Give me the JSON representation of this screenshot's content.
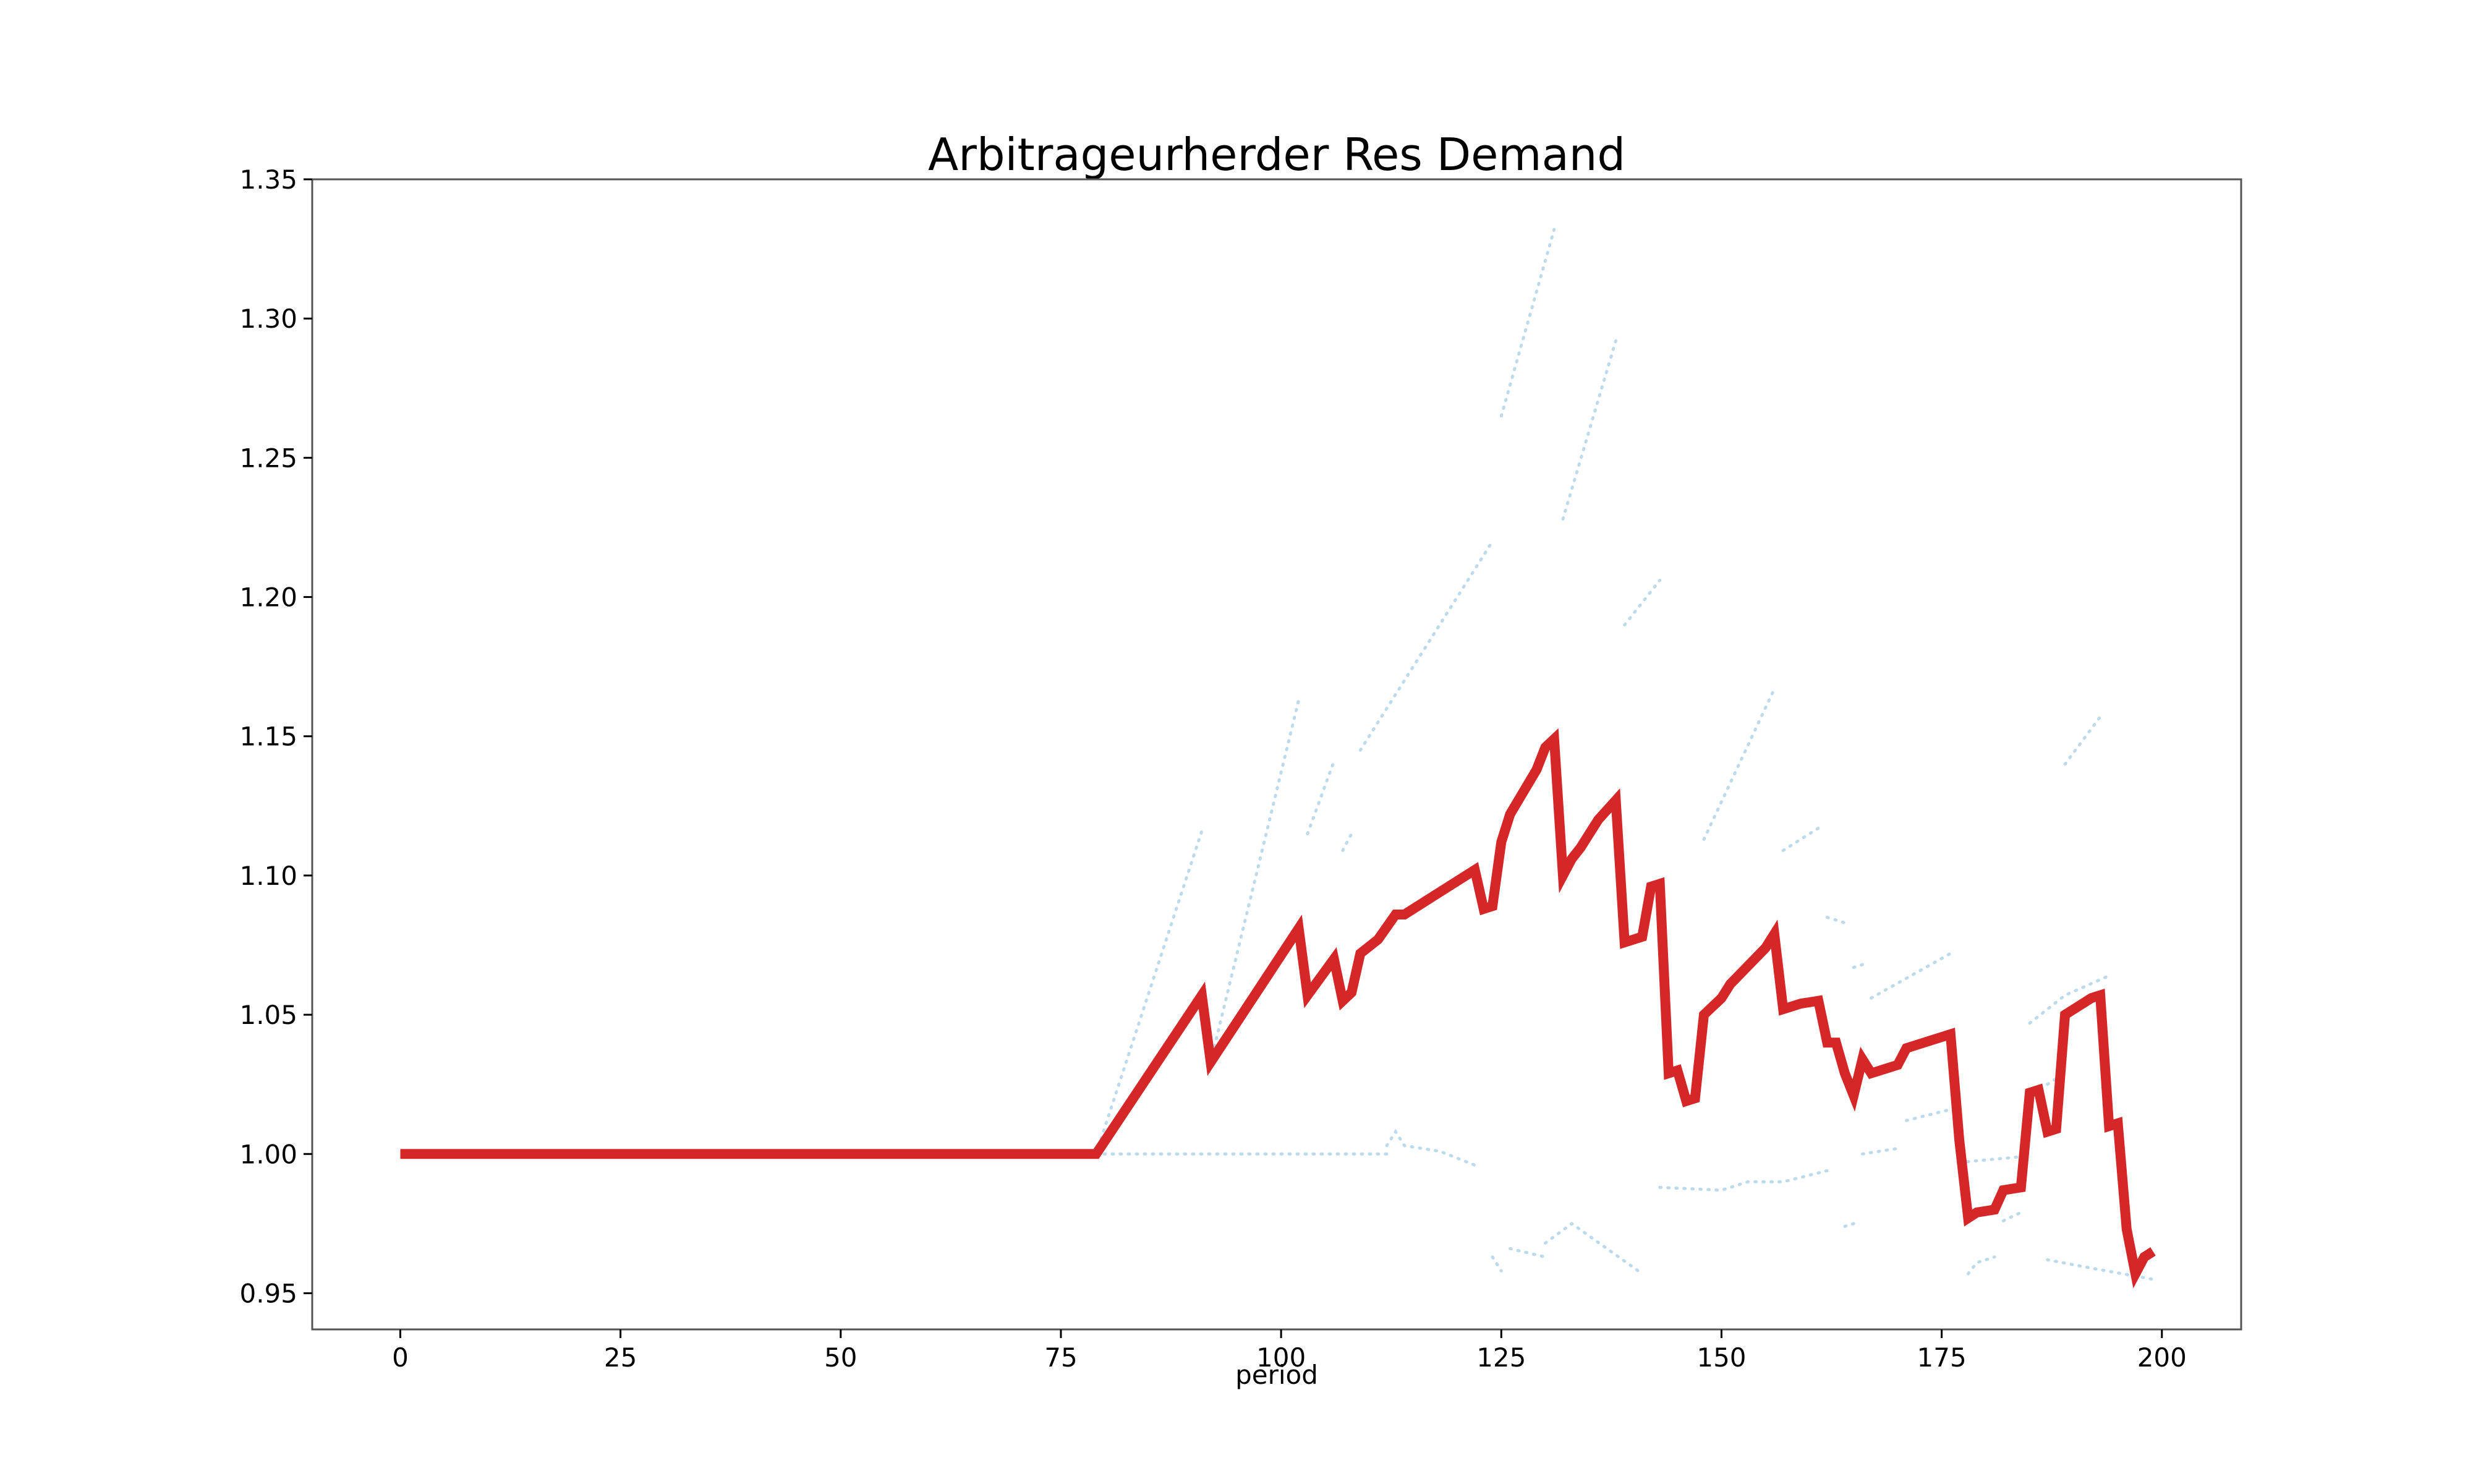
{
  "chart_data": {
    "type": "line",
    "title": "Arbitrageurherder Res Demand",
    "xlabel": "period",
    "ylabel": "",
    "xlim": [
      -10,
      209
    ],
    "ylim": [
      0.937,
      1.35
    ],
    "x_ticks": [
      0,
      25,
      50,
      75,
      100,
      125,
      150,
      175,
      200
    ],
    "x_tick_labels": [
      "0",
      "25",
      "50",
      "75",
      "100",
      "125",
      "150",
      "175",
      "200"
    ],
    "y_ticks": [
      0.95,
      1.0,
      1.05,
      1.1,
      1.15,
      1.2,
      1.25,
      1.3,
      1.35
    ],
    "y_tick_labels": [
      "0.95",
      "1.00",
      "1.05",
      "1.10",
      "1.15",
      "1.20",
      "1.25",
      "1.30",
      "1.35"
    ],
    "grid": false,
    "legend": "none",
    "colors": {
      "main_series": "#d62728",
      "faint_series": "#a6cee3"
    },
    "series": [
      {
        "points": [
          [
            0,
            1.0
          ],
          [
            79,
            1.0
          ],
          [
            91,
            1.057
          ],
          [
            92,
            1.033
          ],
          [
            102,
            1.081
          ],
          [
            103,
            1.057
          ],
          [
            106,
            1.07
          ],
          [
            107,
            1.055
          ],
          [
            108,
            1.058
          ],
          [
            109,
            1.072
          ],
          [
            111,
            1.077
          ],
          [
            113,
            1.086
          ],
          [
            114,
            1.086
          ],
          [
            118,
            1.094
          ],
          [
            122,
            1.102
          ],
          [
            123,
            1.088
          ],
          [
            124,
            1.089
          ],
          [
            125,
            1.112
          ],
          [
            126,
            1.122
          ],
          [
            129,
            1.138
          ],
          [
            130,
            1.146
          ],
          [
            131,
            1.149
          ],
          [
            132,
            1.1
          ],
          [
            133,
            1.106
          ],
          [
            134,
            1.11
          ],
          [
            136,
            1.12
          ],
          [
            138,
            1.127
          ],
          [
            139,
            1.076
          ],
          [
            141,
            1.078
          ],
          [
            142,
            1.096
          ],
          [
            143,
            1.097
          ],
          [
            144,
            1.029
          ],
          [
            145,
            1.03
          ],
          [
            146,
            1.019
          ],
          [
            147,
            1.02
          ],
          [
            148,
            1.05
          ],
          [
            150,
            1.056
          ],
          [
            151,
            1.061
          ],
          [
            155,
            1.074
          ],
          [
            156,
            1.079
          ],
          [
            157,
            1.052
          ],
          [
            159,
            1.054
          ],
          [
            161,
            1.055
          ],
          [
            162,
            1.04
          ],
          [
            163,
            1.04
          ],
          [
            164,
            1.029
          ],
          [
            165,
            1.021
          ],
          [
            166,
            1.034
          ],
          [
            167,
            1.029
          ],
          [
            168,
            1.03
          ],
          [
            170,
            1.032
          ],
          [
            171,
            1.038
          ],
          [
            175,
            1.042
          ],
          [
            176,
            1.043
          ],
          [
            177,
            1.005
          ],
          [
            178,
            0.977
          ],
          [
            179,
            0.979
          ],
          [
            181,
            0.98
          ],
          [
            182,
            0.987
          ],
          [
            184,
            0.988
          ],
          [
            185,
            1.022
          ],
          [
            186,
            1.023
          ],
          [
            187,
            1.008
          ],
          [
            188,
            1.009
          ],
          [
            189,
            1.05
          ],
          [
            192,
            1.056
          ],
          [
            193,
            1.057
          ],
          [
            194,
            1.01
          ],
          [
            195,
            1.011
          ],
          [
            196,
            0.973
          ],
          [
            197,
            0.957
          ],
          [
            198,
            0.963
          ],
          [
            199,
            0.965
          ]
        ]
      }
    ],
    "faint_series": [
      {
        "points": [
          [
            79,
            1.0
          ],
          [
            100,
            1.0
          ],
          [
            112,
            1.0
          ]
        ]
      },
      {
        "points": [
          [
            112,
            1.003
          ],
          [
            113,
            1.008
          ],
          [
            114,
            1.003
          ],
          [
            118,
            1.001
          ],
          [
            122,
            0.996
          ]
        ]
      },
      {
        "points": [
          [
            79,
            1.0
          ],
          [
            91,
            1.116
          ]
        ]
      },
      {
        "points": [
          [
            92,
            1.033
          ],
          [
            102,
            1.163
          ]
        ]
      },
      {
        "points": [
          [
            103,
            1.115
          ],
          [
            106,
            1.141
          ]
        ]
      },
      {
        "points": [
          [
            107,
            1.109
          ],
          [
            108,
            1.115
          ]
        ]
      },
      {
        "points": [
          [
            109,
            1.145
          ],
          [
            124,
            1.22
          ]
        ]
      },
      {
        "points": [
          [
            125,
            1.265
          ],
          [
            131,
            1.332
          ]
        ]
      },
      {
        "points": [
          [
            132,
            1.228
          ],
          [
            138,
            1.292
          ]
        ]
      },
      {
        "points": [
          [
            139,
            1.19
          ],
          [
            143,
            1.206
          ]
        ]
      },
      {
        "points": [
          [
            148,
            1.113
          ],
          [
            156,
            1.167
          ]
        ]
      },
      {
        "points": [
          [
            157,
            1.109
          ],
          [
            161,
            1.117
          ]
        ]
      },
      {
        "points": [
          [
            162,
            1.085
          ],
          [
            164,
            1.083
          ]
        ]
      },
      {
        "points": [
          [
            165,
            1.067
          ],
          [
            166,
            1.068
          ]
        ]
      },
      {
        "points": [
          [
            167,
            1.056
          ],
          [
            176,
            1.072
          ]
        ]
      },
      {
        "points": [
          [
            187,
            1.025
          ],
          [
            188,
            1.027
          ]
        ]
      },
      {
        "points": [
          [
            185,
            1.047
          ],
          [
            189,
            1.057
          ],
          [
            194,
            1.064
          ]
        ]
      },
      {
        "points": [
          [
            189,
            1.14
          ],
          [
            193,
            1.157
          ]
        ]
      },
      {
        "points": [
          [
            124,
            0.963
          ],
          [
            125,
            0.958
          ]
        ]
      },
      {
        "points": [
          [
            126,
            0.966
          ],
          [
            130,
            0.963
          ]
        ]
      },
      {
        "points": [
          [
            130,
            0.968
          ],
          [
            133,
            0.975
          ],
          [
            141,
            0.957
          ]
        ]
      },
      {
        "points": [
          [
            143,
            0.988
          ],
          [
            150,
            0.987
          ],
          [
            153,
            0.99
          ],
          [
            157,
            0.99
          ],
          [
            162,
            0.994
          ]
        ]
      },
      {
        "points": [
          [
            164,
            0.974
          ],
          [
            165,
            0.975
          ]
        ]
      },
      {
        "points": [
          [
            166,
            1.0
          ],
          [
            170,
            1.002
          ]
        ]
      },
      {
        "points": [
          [
            171,
            1.012
          ],
          [
            176,
            1.016
          ]
        ]
      },
      {
        "points": [
          [
            177,
            0.997
          ],
          [
            184,
            0.999
          ]
        ]
      },
      {
        "points": [
          [
            178,
            0.957
          ],
          [
            179,
            0.961
          ],
          [
            181,
            0.963
          ]
        ]
      },
      {
        "points": [
          [
            182,
            0.976
          ],
          [
            184,
            0.979
          ]
        ]
      },
      {
        "points": [
          [
            187,
            0.962
          ],
          [
            192,
            0.959
          ],
          [
            199,
            0.955
          ]
        ]
      }
    ]
  }
}
